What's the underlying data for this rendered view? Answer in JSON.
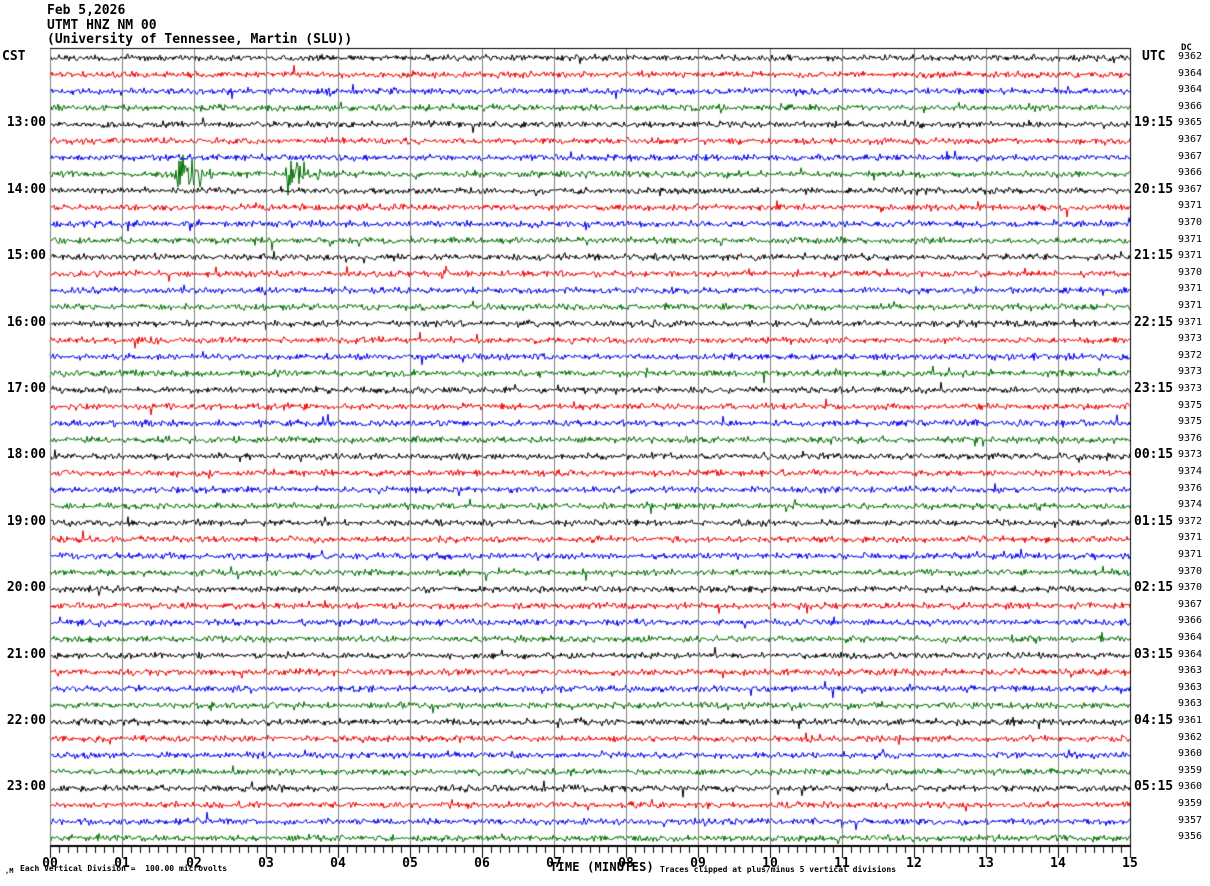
{
  "header": {
    "date": "Feb 5,2026",
    "station_line": "UTMT HNZ NM 00",
    "affiliation_line": "(University of Tennessee, Martin (SLU))"
  },
  "axis": {
    "left_timezone_label": "CST",
    "right_timezone_label": "UTC",
    "dc_column_label": "DC",
    "x_axis_title": "TIME (MINUTES)",
    "x_tick_labels": [
      "00",
      "01",
      "02",
      "03",
      "04",
      "05",
      "06",
      "07",
      "08",
      "09",
      "10",
      "11",
      "12",
      "13",
      "14",
      "15"
    ]
  },
  "footer": {
    "scale_note": "Each Vertical Division =  100.00 microvolts",
    "clip_note": "Traces clipped at plus/minus 5 vertical divisions",
    "corner_mark": ",M"
  },
  "colors": {
    "trace_black": "#000000",
    "trace_red": "#ee0000",
    "trace_blue": "#0000ee",
    "trace_green": "#007000",
    "grid": "#808080",
    "frame": "#000000",
    "background": "#ffffff"
  },
  "chart_data": {
    "type": "line",
    "title": "UTMT HNZ NM 00 helicorder record, Feb 5,2026",
    "xlabel": "TIME (MINUTES)",
    "x_range_minutes": [
      0,
      15
    ],
    "minutes_per_row": 15,
    "minor_ticks_per_minute": 8,
    "clip_note_divisions": 5,
    "vertical_division_microvolts": 100.0,
    "legend_position": "none",
    "grid": "vertical minute lines",
    "rows": [
      {
        "cst": "",
        "utc": "",
        "color": "black",
        "dc": "9362",
        "events": []
      },
      {
        "cst": "",
        "utc": "",
        "color": "red",
        "dc": "9364",
        "events": []
      },
      {
        "cst": "",
        "utc": "",
        "color": "blue",
        "dc": "9364",
        "events": []
      },
      {
        "cst": "",
        "utc": "",
        "color": "green",
        "dc": "9366",
        "events": []
      },
      {
        "cst": "13:00",
        "utc": "19:15",
        "color": "black",
        "dc": "9365",
        "events": []
      },
      {
        "cst": "",
        "utc": "",
        "color": "red",
        "dc": "9367",
        "events": []
      },
      {
        "cst": "",
        "utc": "",
        "color": "blue",
        "dc": "9367",
        "events": []
      },
      {
        "cst": "",
        "utc": "",
        "color": "green",
        "dc": "9366",
        "events": [
          {
            "start": 1.72,
            "end": 2.3,
            "amp": 22
          },
          {
            "start": 2.3,
            "end": 3.2,
            "amp": 4
          },
          {
            "start": 3.25,
            "end": 3.75,
            "amp": 22
          },
          {
            "start": 3.75,
            "end": 4.9,
            "amp": 4
          }
        ]
      },
      {
        "cst": "14:00",
        "utc": "20:15",
        "color": "black",
        "dc": "9367",
        "events": []
      },
      {
        "cst": "",
        "utc": "",
        "color": "red",
        "dc": "9371",
        "events": []
      },
      {
        "cst": "",
        "utc": "",
        "color": "blue",
        "dc": "9370",
        "events": [
          {
            "start": 0.95,
            "end": 1.4,
            "amp": 6.5
          }
        ]
      },
      {
        "cst": "",
        "utc": "",
        "color": "green",
        "dc": "9371",
        "events": [
          {
            "start": 2.8,
            "end": 3.2,
            "amp": 4.5
          }
        ]
      },
      {
        "cst": "15:00",
        "utc": "21:15",
        "color": "black",
        "dc": "9371",
        "events": []
      },
      {
        "cst": "",
        "utc": "",
        "color": "red",
        "dc": "9370",
        "events": []
      },
      {
        "cst": "",
        "utc": "",
        "color": "blue",
        "dc": "9371",
        "events": []
      },
      {
        "cst": "",
        "utc": "",
        "color": "green",
        "dc": "9371",
        "events": []
      },
      {
        "cst": "16:00",
        "utc": "22:15",
        "color": "black",
        "dc": "9371",
        "events": []
      },
      {
        "cst": "",
        "utc": "",
        "color": "red",
        "dc": "9373",
        "events": []
      },
      {
        "cst": "",
        "utc": "",
        "color": "blue",
        "dc": "9372",
        "events": []
      },
      {
        "cst": "",
        "utc": "",
        "color": "green",
        "dc": "9373",
        "events": []
      },
      {
        "cst": "17:00",
        "utc": "23:15",
        "color": "black",
        "dc": "9373",
        "events": []
      },
      {
        "cst": "",
        "utc": "",
        "color": "red",
        "dc": "9375",
        "events": []
      },
      {
        "cst": "",
        "utc": "",
        "color": "blue",
        "dc": "9375",
        "events": []
      },
      {
        "cst": "",
        "utc": "",
        "color": "green",
        "dc": "9376",
        "events": []
      },
      {
        "cst": "18:00",
        "utc": "00:15",
        "color": "black",
        "dc": "9373",
        "events": []
      },
      {
        "cst": "",
        "utc": "",
        "color": "red",
        "dc": "9374",
        "events": []
      },
      {
        "cst": "",
        "utc": "",
        "color": "blue",
        "dc": "9376",
        "events": []
      },
      {
        "cst": "",
        "utc": "",
        "color": "green",
        "dc": "9374",
        "events": []
      },
      {
        "cst": "19:00",
        "utc": "01:15",
        "color": "black",
        "dc": "9372",
        "events": [
          {
            "start": 5.9,
            "end": 6.7,
            "amp": 4
          }
        ]
      },
      {
        "cst": "",
        "utc": "",
        "color": "red",
        "dc": "9371",
        "events": []
      },
      {
        "cst": "",
        "utc": "",
        "color": "blue",
        "dc": "9371",
        "events": []
      },
      {
        "cst": "",
        "utc": "",
        "color": "green",
        "dc": "9370",
        "events": []
      },
      {
        "cst": "20:00",
        "utc": "02:15",
        "color": "black",
        "dc": "9370",
        "events": []
      },
      {
        "cst": "",
        "utc": "",
        "color": "red",
        "dc": "9367",
        "events": []
      },
      {
        "cst": "",
        "utc": "",
        "color": "blue",
        "dc": "9366",
        "events": []
      },
      {
        "cst": "",
        "utc": "",
        "color": "green",
        "dc": "9364",
        "events": []
      },
      {
        "cst": "21:00",
        "utc": "03:15",
        "color": "black",
        "dc": "9364",
        "events": []
      },
      {
        "cst": "",
        "utc": "",
        "color": "red",
        "dc": "9363",
        "events": []
      },
      {
        "cst": "",
        "utc": "",
        "color": "blue",
        "dc": "9363",
        "events": []
      },
      {
        "cst": "",
        "utc": "",
        "color": "green",
        "dc": "9363",
        "events": []
      },
      {
        "cst": "22:00",
        "utc": "04:15",
        "color": "black",
        "dc": "9361",
        "events": []
      },
      {
        "cst": "",
        "utc": "",
        "color": "red",
        "dc": "9362",
        "events": []
      },
      {
        "cst": "",
        "utc": "",
        "color": "blue",
        "dc": "9360",
        "events": []
      },
      {
        "cst": "",
        "utc": "",
        "color": "green",
        "dc": "9359",
        "events": []
      },
      {
        "cst": "23:00",
        "utc": "05:15",
        "color": "black",
        "dc": "9360",
        "events": [
          {
            "start": 6.95,
            "end": 8.0,
            "amp": 4.5
          }
        ]
      },
      {
        "cst": "",
        "utc": "",
        "color": "red",
        "dc": "9359",
        "events": []
      },
      {
        "cst": "",
        "utc": "",
        "color": "blue",
        "dc": "9357",
        "events": []
      },
      {
        "cst": "",
        "utc": "",
        "color": "green",
        "dc": "9356",
        "events": []
      }
    ]
  }
}
